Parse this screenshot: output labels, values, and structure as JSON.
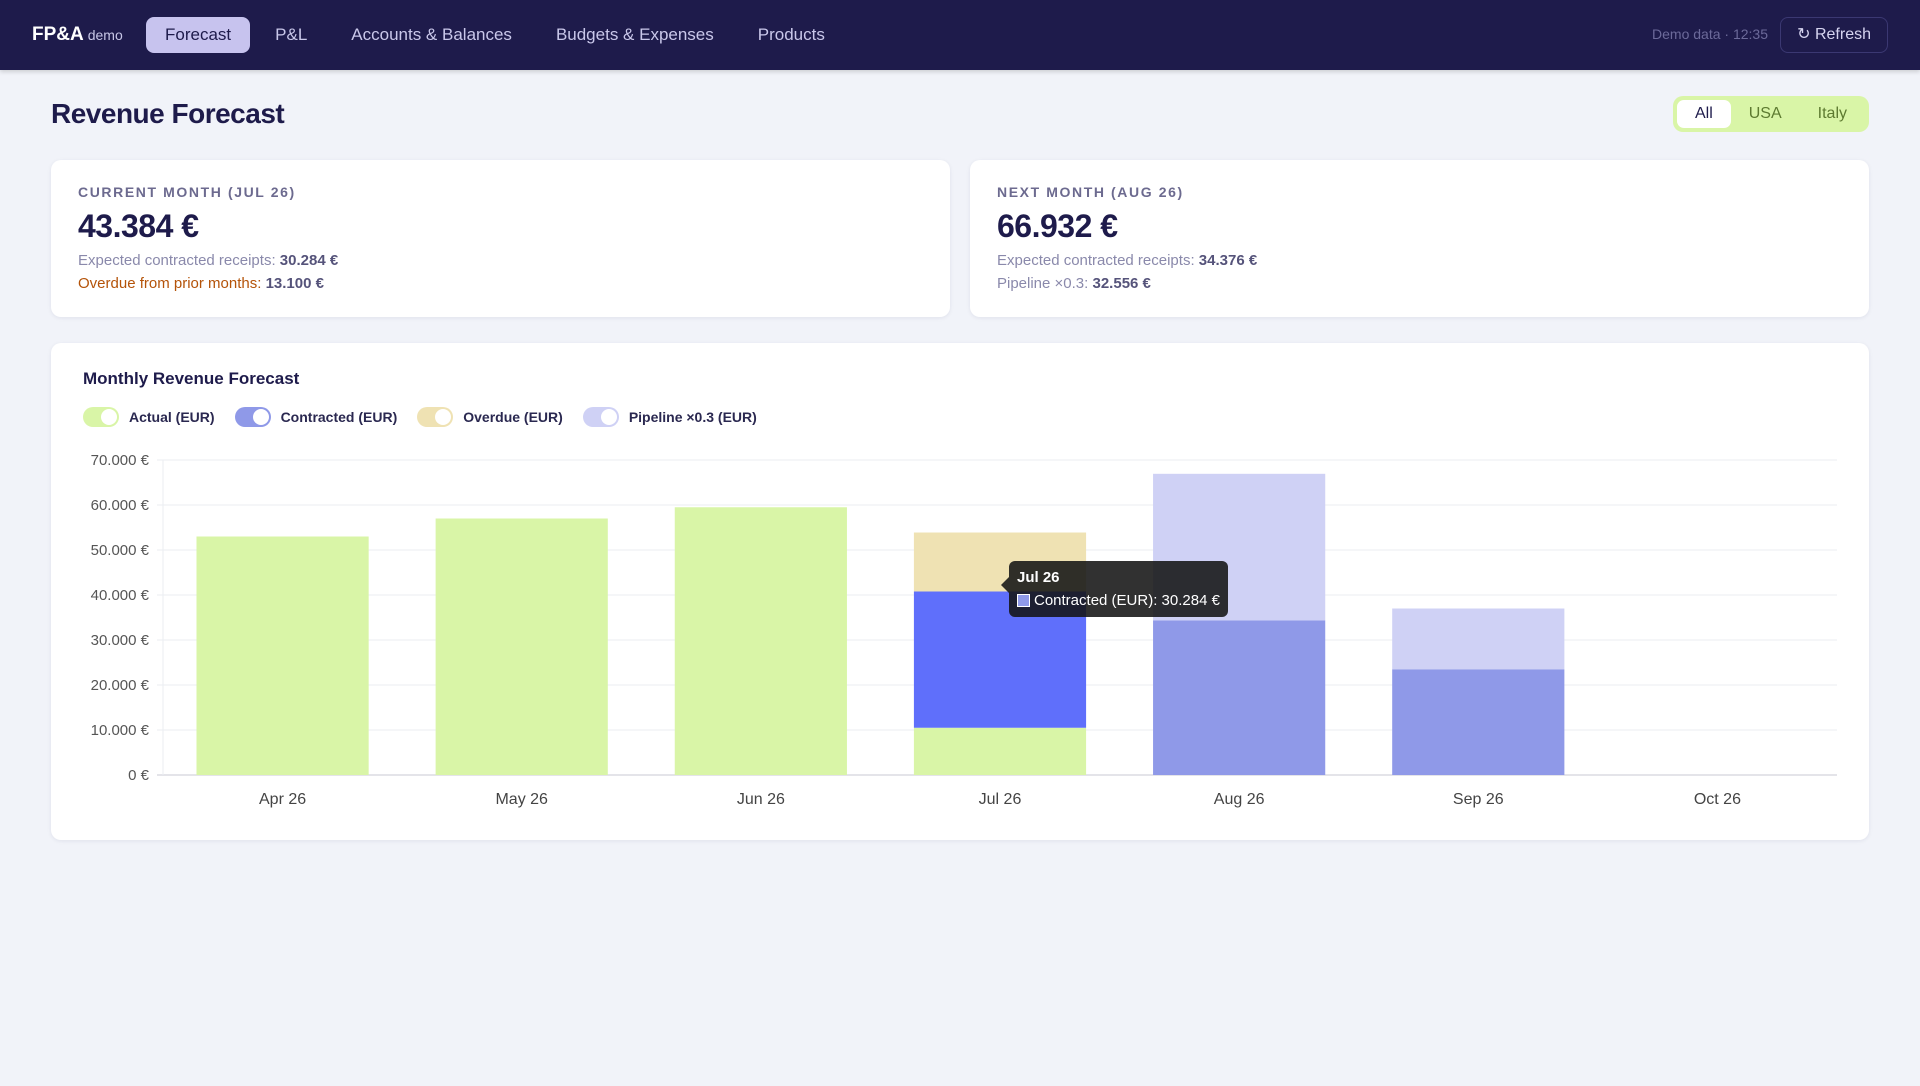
{
  "header": {
    "brand": "FP&A",
    "brand_sub": "demo",
    "nav": [
      {
        "label": "Forecast",
        "active": true
      },
      {
        "label": "P&L"
      },
      {
        "label": "Accounts & Balances"
      },
      {
        "label": "Budgets & Expenses"
      },
      {
        "label": "Products"
      }
    ],
    "status": "Demo data · 12:35",
    "refresh_label": "↻ Refresh"
  },
  "page": {
    "title": "Revenue Forecast",
    "region_filter": {
      "options": [
        "All",
        "USA",
        "Italy"
      ],
      "selected": "All"
    }
  },
  "kpis": {
    "current": {
      "label": "CURRENT MONTH (JUL 26)",
      "value": "43.384 €",
      "line1_label": "Expected contracted receipts:",
      "line1_value": "30.284 €",
      "line2_label": "Overdue from prior months:",
      "line2_value": "13.100 €"
    },
    "next": {
      "label": "NEXT MONTH (AUG 26)",
      "value": "66.932 €",
      "line1_label": "Expected contracted receipts:",
      "line1_value": "34.376 €",
      "line2_label": "Pipeline ×0.3:",
      "line2_value": "32.556 €"
    }
  },
  "colors": {
    "actual": "#d9f5a7",
    "contracted": "#8f99e8",
    "contracted_hover": "#5f6ffb",
    "overdue": "#efe2b3",
    "pipeline": "#cfd1f5",
    "grid": "#ebedf2",
    "axis": "#c8cad3"
  },
  "chart_data": {
    "type": "bar",
    "stacked": true,
    "title": "Monthly Revenue Forecast",
    "categories": [
      "Apr 26",
      "May 26",
      "Jun 26",
      "Jul 26",
      "Aug 26",
      "Sep 26",
      "Oct 26"
    ],
    "series": [
      {
        "name": "Actual (EUR)",
        "color_key": "actual",
        "values": [
          53000,
          57000,
          59500,
          10500,
          0,
          0,
          0
        ]
      },
      {
        "name": "Contracted (EUR)",
        "color_key": "contracted",
        "values": [
          0,
          0,
          0,
          30284,
          34376,
          23500,
          0
        ]
      },
      {
        "name": "Overdue (EUR)",
        "color_key": "overdue",
        "values": [
          0,
          0,
          0,
          13100,
          0,
          0,
          0
        ]
      },
      {
        "name": "Pipeline ×0.3 (EUR)",
        "color_key": "pipeline",
        "values": [
          0,
          0,
          0,
          0,
          32556,
          13500,
          0
        ]
      }
    ],
    "ylim": [
      0,
      70000
    ],
    "yticks": [
      0,
      10000,
      20000,
      30000,
      40000,
      50000,
      60000,
      70000
    ],
    "ytick_labels": [
      "0 €",
      "10.000 €",
      "20.000 €",
      "30.000 €",
      "40.000 €",
      "50.000 €",
      "60.000 €",
      "70.000 €"
    ],
    "grid": true,
    "legend": "top-left",
    "tooltip": {
      "title": "Jul 26",
      "text": "Contracted (EUR): 30.284 €",
      "category": "Jul 26",
      "series": "Contracted (EUR)"
    }
  }
}
